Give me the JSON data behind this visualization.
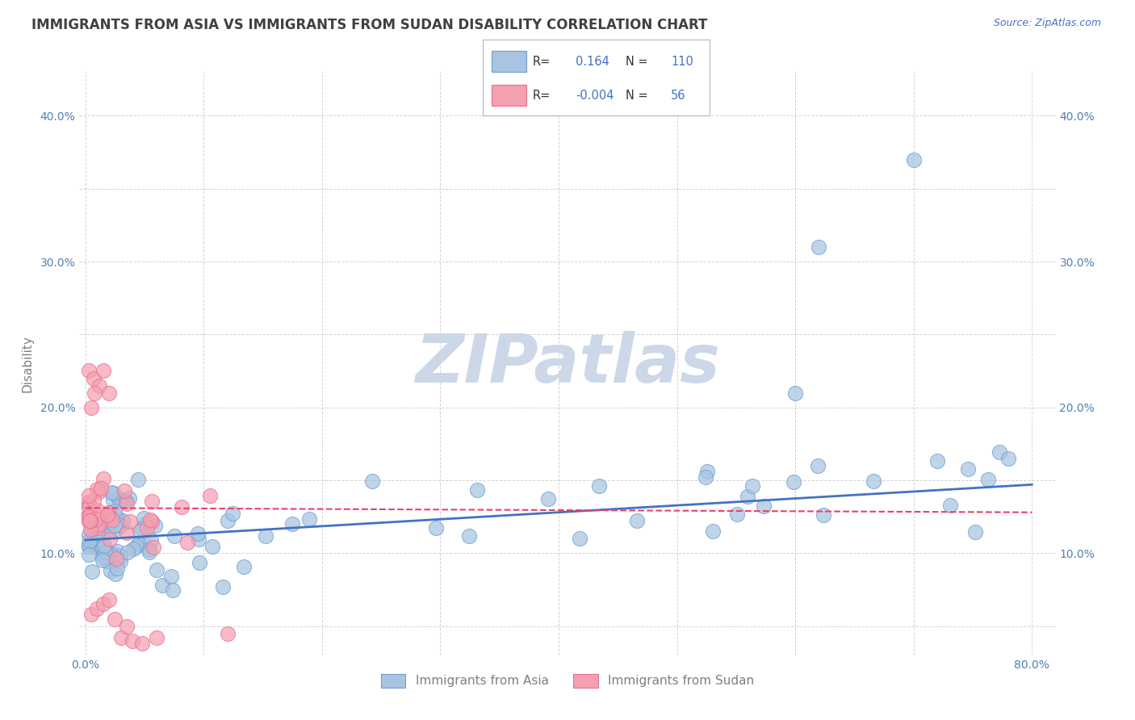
{
  "title": "IMMIGRANTS FROM ASIA VS IMMIGRANTS FROM SUDAN DISABILITY CORRELATION CHART",
  "source": "Source: ZipAtlas.com",
  "ylabel": "Disability",
  "xlim": [
    -0.005,
    0.82
  ],
  "ylim": [
    0.03,
    0.43
  ],
  "x_ticks": [
    0.0,
    0.1,
    0.2,
    0.3,
    0.4,
    0.5,
    0.6,
    0.7,
    0.8
  ],
  "x_tick_labels": [
    "0.0%",
    "",
    "",
    "",
    "",
    "",
    "",
    "",
    "80.0%"
  ],
  "y_ticks": [
    0.05,
    0.1,
    0.15,
    0.2,
    0.25,
    0.3,
    0.35,
    0.4
  ],
  "y_tick_labels": [
    "",
    "10.0%",
    "",
    "20.0%",
    "",
    "30.0%",
    "",
    "40.0%"
  ],
  "asia_R": "0.164",
  "asia_N": "110",
  "sudan_R": "-0.004",
  "sudan_N": "56",
  "asia_color": "#6b9fd4",
  "sudan_color": "#e87090",
  "asia_fill_color": "#a8c4e0",
  "sudan_fill_color": "#f4a0b0",
  "asia_line_color": "#4472c4",
  "sudan_line_color": "#e84070",
  "watermark_text": "ZIPatlas",
  "watermark_color": "#ccd8e8",
  "background_color": "#ffffff",
  "grid_color": "#c8c8c8",
  "title_color": "#404040",
  "axis_label_color": "#808080",
  "tick_label_color": "#5080b0",
  "source_color": "#4472c4",
  "legend_text_color": "#4472c4",
  "legend_label_color": "#333333",
  "asia_line_x": [
    0.0,
    0.8
  ],
  "asia_line_y": [
    0.109,
    0.147
  ],
  "sudan_line_x": [
    0.0,
    0.8
  ],
  "sudan_line_y": [
    0.131,
    0.128
  ]
}
